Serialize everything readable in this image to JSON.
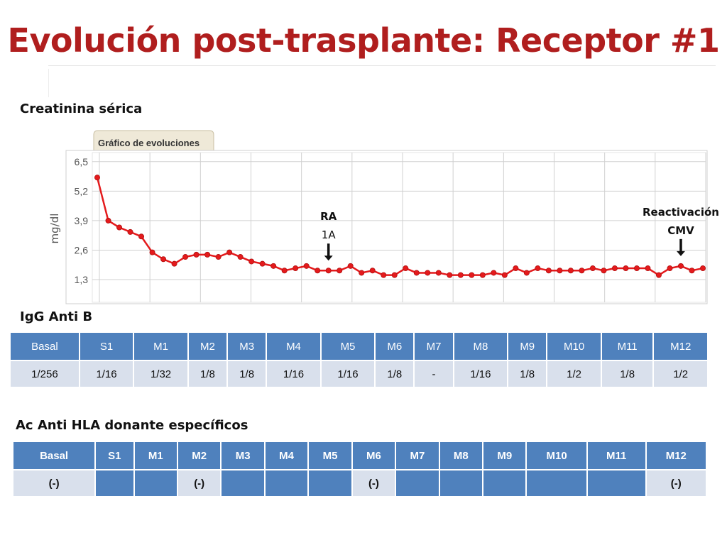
{
  "title": "Evolución post-trasplante: Receptor #1",
  "sections": {
    "creatinine": "Creatinina sérica",
    "igg": "IgG Anti B",
    "hla": "Ac Anti HLA donante específicos"
  },
  "chart_panel": {
    "tab_label": "Gráfico de evoluciones"
  },
  "chart_data": {
    "type": "line",
    "title": "Creatinina sérica",
    "ylabel": "mg/dl",
    "yticks": [
      "6,5",
      "5,2",
      "3,9",
      "2,6",
      "1,3"
    ],
    "ytick_values": [
      6.5,
      5.2,
      3.9,
      2.6,
      1.3
    ],
    "ylim": [
      0.3,
      6.9
    ],
    "grid": true,
    "line_color": "#e41a1c",
    "series": [
      {
        "values": [
          5.8,
          3.9,
          3.6,
          3.4,
          3.2,
          2.5,
          2.2,
          2.0,
          2.3,
          2.4,
          2.4,
          2.3,
          2.5,
          2.3,
          2.1,
          2.0,
          1.9,
          1.7,
          1.8,
          1.9,
          1.7,
          1.7,
          1.7,
          1.9,
          1.6,
          1.7,
          1.5,
          1.5,
          1.8,
          1.6,
          1.6,
          1.6,
          1.5,
          1.5,
          1.5,
          1.5,
          1.6,
          1.5,
          1.8,
          1.6,
          1.8,
          1.7,
          1.7,
          1.7,
          1.7,
          1.8,
          1.7,
          1.8,
          1.8,
          1.8,
          1.8,
          1.5,
          1.8,
          1.9,
          1.7,
          1.8
        ]
      }
    ],
    "annotations": [
      {
        "line1": "RA",
        "line2": "1A",
        "index": 21
      },
      {
        "line1": "Reactivación",
        "line2": "CMV",
        "index": 53
      }
    ]
  },
  "igg_table": {
    "headers": [
      "Basal",
      "S1",
      "M1",
      "M2",
      "M3",
      "M4",
      "M5",
      "M6",
      "M7",
      "M8",
      "M9",
      "M10",
      "M11",
      "M12"
    ],
    "values": [
      "1/256",
      "1/16",
      "1/32",
      "1/8",
      "1/8",
      "1/16",
      "1/16",
      "1/8",
      "-",
      "1/16",
      "1/8",
      "1/2",
      "1/8",
      "1/2"
    ]
  },
  "hla_table": {
    "headers": [
      "Basal",
      "S1",
      "M1",
      "M2",
      "M3",
      "M4",
      "M5",
      "M6",
      "M7",
      "M8",
      "M9",
      "M10",
      "M11",
      "M12"
    ],
    "values": [
      "(-)",
      "",
      "",
      "(-)",
      "",
      "",
      "",
      "(-)",
      "",
      "",
      "",
      "",
      "",
      "(-)"
    ]
  }
}
